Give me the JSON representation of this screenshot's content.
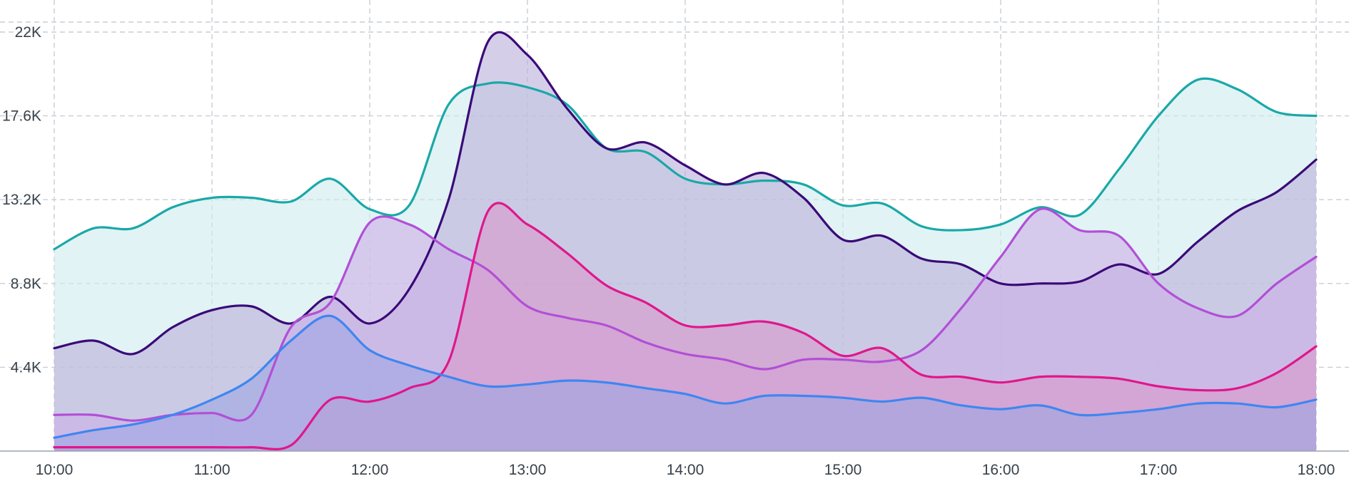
{
  "chart_data": {
    "type": "area",
    "title": "",
    "xlabel": "",
    "ylabel": "",
    "grid": true,
    "legend": "none",
    "xlim": [
      10.0,
      18.0
    ],
    "ylim": [
      0,
      22000
    ],
    "x_ticks": [
      {
        "value": 10,
        "label": "10:00"
      },
      {
        "value": 11,
        "label": "11:00"
      },
      {
        "value": 12,
        "label": "12:00"
      },
      {
        "value": 13,
        "label": "13:00"
      },
      {
        "value": 14,
        "label": "14:00"
      },
      {
        "value": 15,
        "label": "15:00"
      },
      {
        "value": 16,
        "label": "16:00"
      },
      {
        "value": 17,
        "label": "17:00"
      },
      {
        "value": 18,
        "label": "18:00"
      }
    ],
    "y_ticks": [
      {
        "value": 4400,
        "label": "4.4K"
      },
      {
        "value": 8800,
        "label": "8.8K"
      },
      {
        "value": 13200,
        "label": "13.2K"
      },
      {
        "value": 17600,
        "label": "17.6K"
      },
      {
        "value": 22000,
        "label": "22K"
      }
    ],
    "x": [
      10.0,
      10.25,
      10.5,
      10.75,
      11.0,
      11.25,
      11.5,
      11.75,
      12.0,
      12.25,
      12.5,
      12.75,
      13.0,
      13.25,
      13.5,
      13.75,
      14.0,
      14.25,
      14.5,
      14.75,
      15.0,
      15.25,
      15.5,
      15.75,
      16.0,
      16.25,
      16.5,
      16.75,
      17.0,
      17.25,
      17.5,
      17.75,
      18.0
    ],
    "series": [
      {
        "color": "#1aa8a8",
        "fill": "#cfeced",
        "values": [
          10600,
          11700,
          11700,
          12800,
          13300,
          13300,
          13100,
          14300,
          12700,
          12900,
          18200,
          19300,
          19100,
          18200,
          15900,
          15700,
          14300,
          14000,
          14200,
          14000,
          12900,
          13000,
          11800,
          11600,
          11900,
          12800,
          12400,
          14800,
          17600,
          19500,
          19000,
          17800,
          17600
        ]
      },
      {
        "color": "#3a0a78",
        "fill": "#bcb0dc",
        "values": [
          5400,
          5800,
          5100,
          6500,
          7400,
          7600,
          6700,
          8100,
          6700,
          8500,
          13200,
          21500,
          20800,
          18000,
          15900,
          16200,
          15000,
          14000,
          14600,
          13300,
          11100,
          11300,
          10100,
          9800,
          8800,
          8800,
          8900,
          9800,
          9300,
          11000,
          12600,
          13600,
          15300
        ]
      },
      {
        "color": "#b24fd6",
        "fill": "#cdb0e6",
        "values": [
          1900,
          1900,
          1600,
          1900,
          2000,
          1900,
          6500,
          7800,
          12000,
          11900,
          10600,
          9500,
          7600,
          7000,
          6600,
          5700,
          5100,
          4800,
          4300,
          4800,
          4800,
          4700,
          5300,
          7500,
          10200,
          12700,
          11600,
          11300,
          8800,
          7500,
          7100,
          8800,
          10200
        ]
      },
      {
        "color": "#e0178c",
        "fill": "#d79ac9",
        "values": [
          200,
          200,
          200,
          200,
          200,
          200,
          300,
          2700,
          2600,
          3300,
          4700,
          12600,
          11900,
          10400,
          8700,
          7800,
          6600,
          6600,
          6800,
          6200,
          5000,
          5400,
          4000,
          3900,
          3600,
          3900,
          3900,
          3800,
          3400,
          3200,
          3300,
          4100,
          5500
        ]
      },
      {
        "color": "#3f86f0",
        "fill": "#9ea6e2",
        "values": [
          700,
          1100,
          1400,
          1900,
          2700,
          3800,
          5800,
          7100,
          5300,
          4500,
          3900,
          3400,
          3500,
          3700,
          3600,
          3300,
          3000,
          2500,
          2900,
          2900,
          2800,
          2600,
          2800,
          2400,
          2200,
          2400,
          1900,
          2000,
          2200,
          2500,
          2500,
          2300,
          2700
        ]
      }
    ]
  }
}
